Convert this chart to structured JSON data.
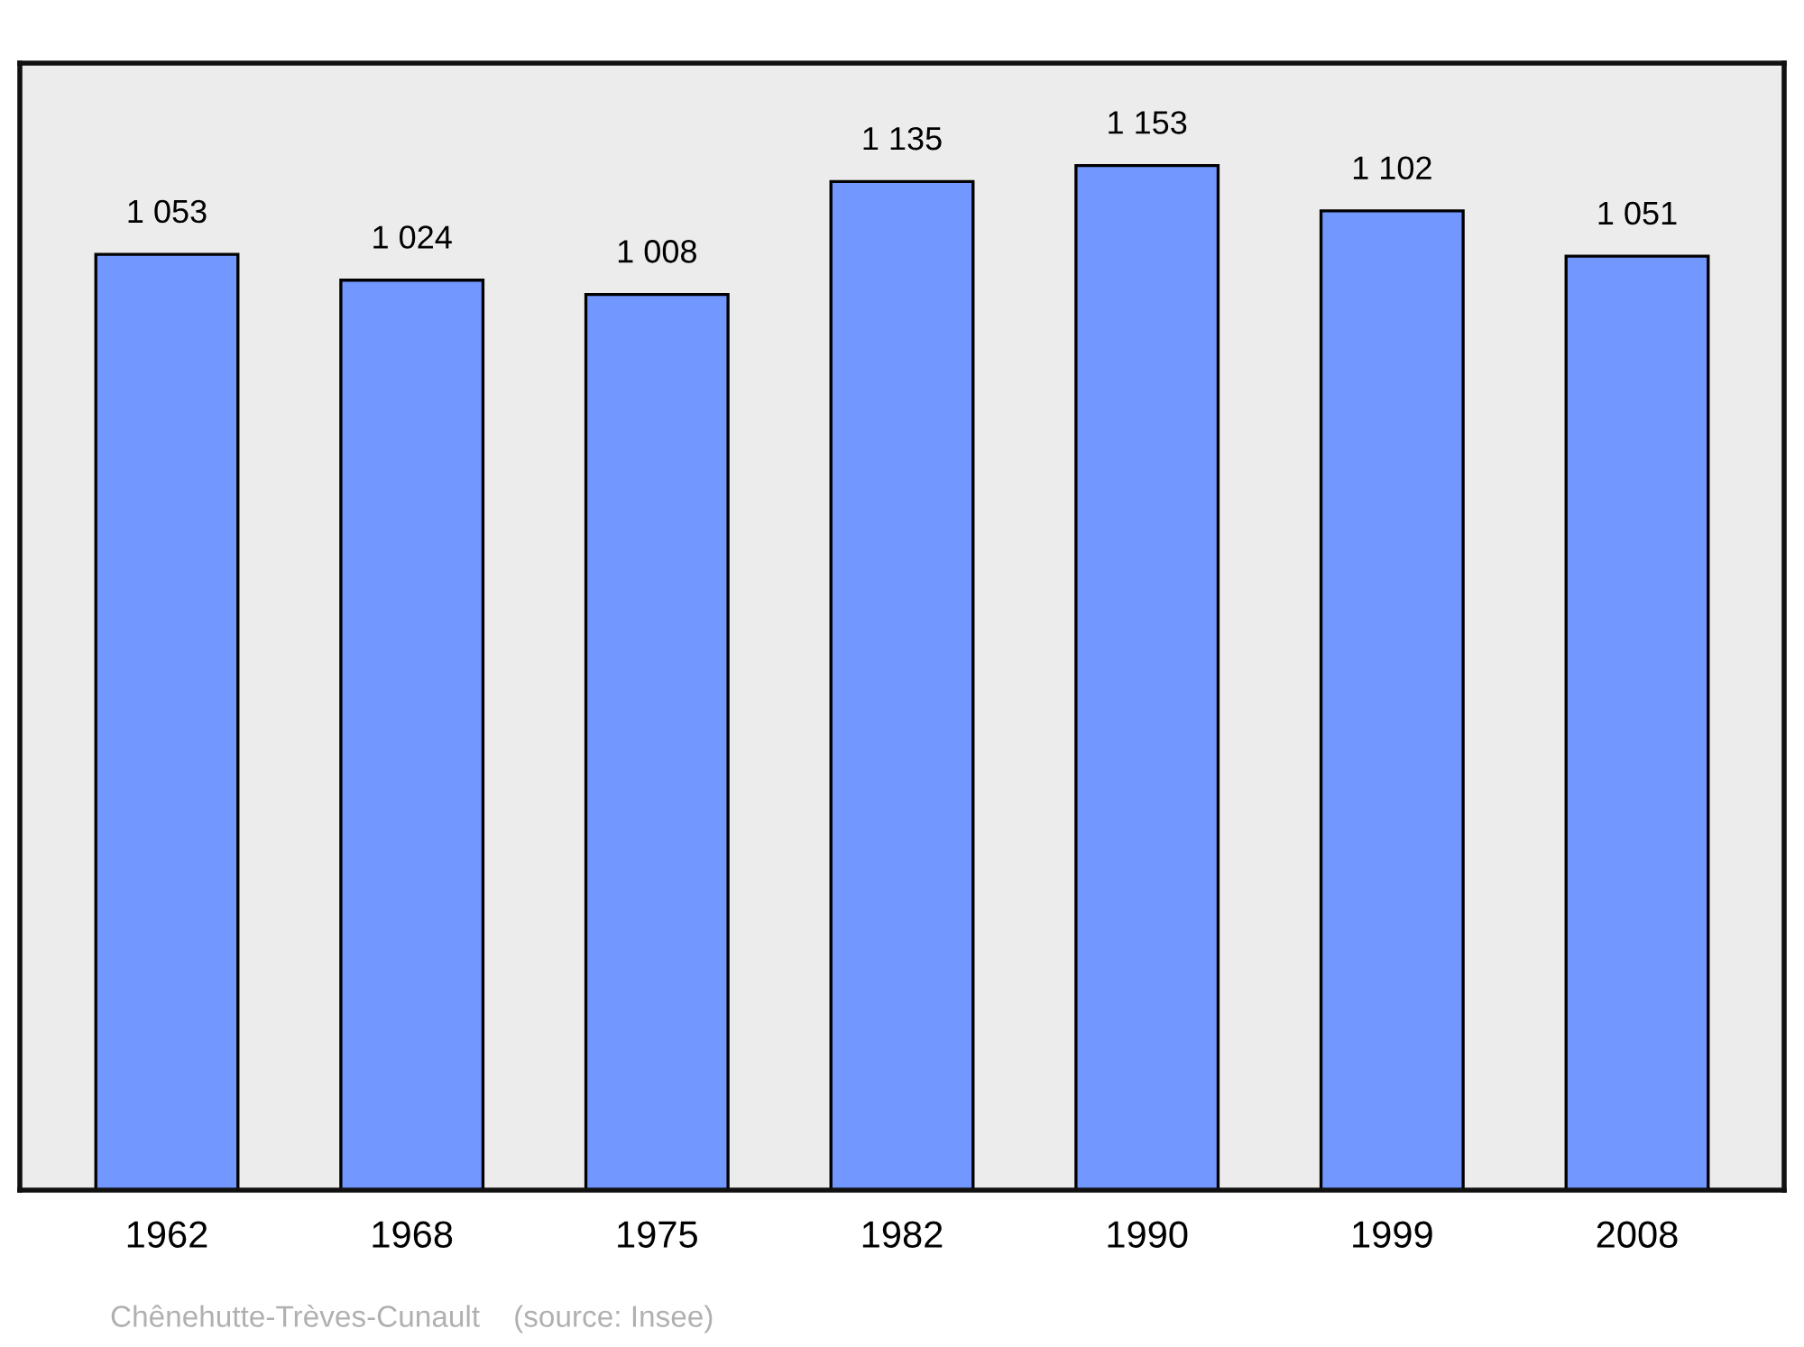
{
  "chart_data": {
    "type": "bar",
    "categories": [
      "1962",
      "1968",
      "1975",
      "1982",
      "1990",
      "1999",
      "2008"
    ],
    "values": [
      1053,
      1024,
      1008,
      1135,
      1153,
      1102,
      1051
    ],
    "value_labels": [
      "1 053",
      "1 024",
      "1 008",
      "1 135",
      "1 153",
      "1 102",
      "1 051"
    ],
    "color": "#7297ff",
    "annotations": [
      "Chênehutte-Trèves-Cunault",
      "(source: Insee)"
    ],
    "grid": false,
    "legend": false
  }
}
